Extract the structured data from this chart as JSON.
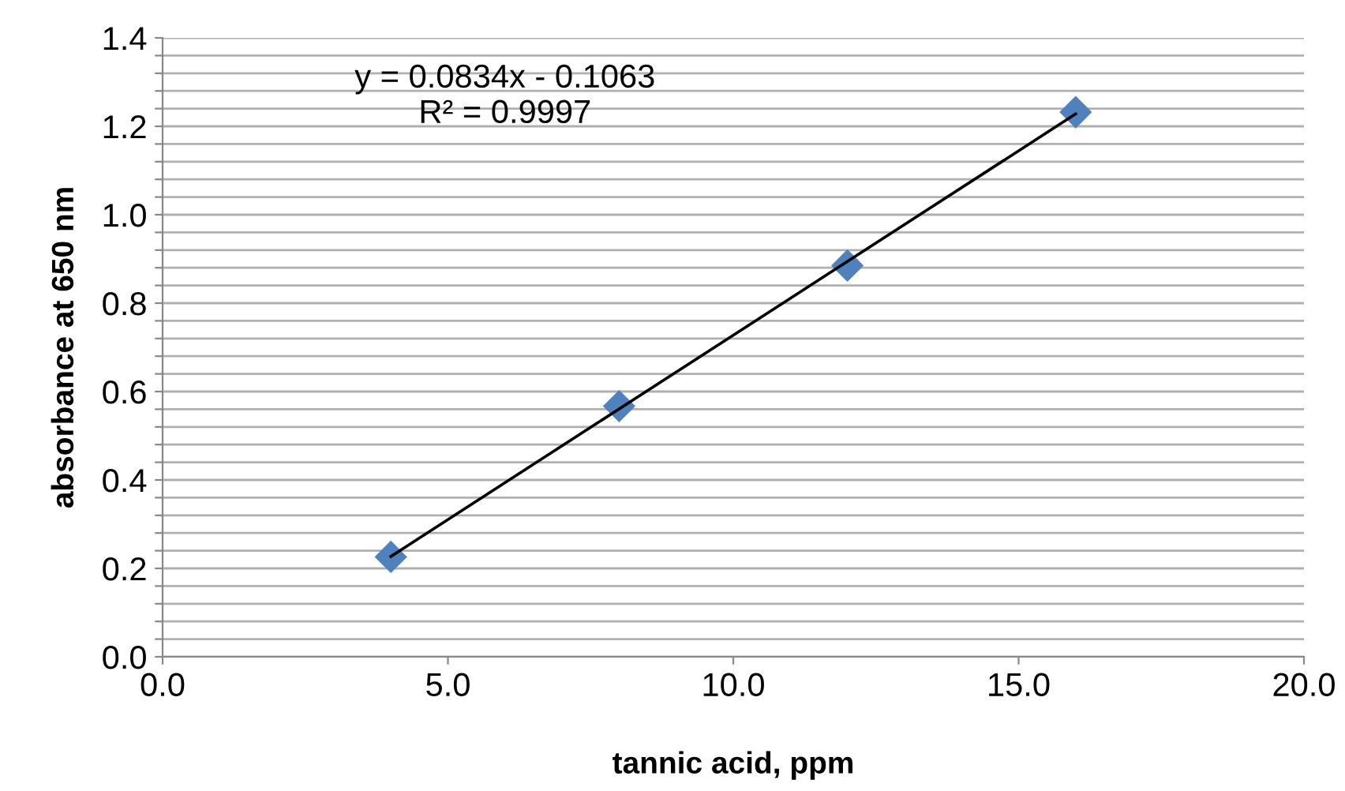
{
  "chart_data": {
    "type": "scatter",
    "xlabel": "tannic acid, ppm",
    "ylabel": "absorbance at 650 nm",
    "xlim": [
      0,
      20
    ],
    "xticks": [
      {
        "value": 0,
        "label": "0.0"
      },
      {
        "value": 5,
        "label": "5.0"
      },
      {
        "value": 10,
        "label": "10.0"
      },
      {
        "value": 15,
        "label": "15.0"
      },
      {
        "value": 20,
        "label": "20.0"
      }
    ],
    "ylim": [
      0,
      1.4
    ],
    "yticks": [
      {
        "value": 0,
        "label": "0.0"
      },
      {
        "value": 0.04,
        "label": null
      },
      {
        "value": 0.08,
        "label": null
      },
      {
        "value": 0.12,
        "label": null
      },
      {
        "value": 0.16,
        "label": null
      },
      {
        "value": 0.2,
        "label": "0.2"
      },
      {
        "value": 0.24,
        "label": null
      },
      {
        "value": 0.28,
        "label": null
      },
      {
        "value": 0.32,
        "label": null
      },
      {
        "value": 0.36,
        "label": null
      },
      {
        "value": 0.4,
        "label": "0.4"
      },
      {
        "value": 0.44,
        "label": null
      },
      {
        "value": 0.48,
        "label": null
      },
      {
        "value": 0.52,
        "label": null
      },
      {
        "value": 0.56,
        "label": null
      },
      {
        "value": 0.6,
        "label": "0.6"
      },
      {
        "value": 0.64,
        "label": null
      },
      {
        "value": 0.68,
        "label": null
      },
      {
        "value": 0.72,
        "label": null
      },
      {
        "value": 0.76,
        "label": null
      },
      {
        "value": 0.8,
        "label": "0.8"
      },
      {
        "value": 0.84,
        "label": null
      },
      {
        "value": 0.88,
        "label": null
      },
      {
        "value": 0.92,
        "label": null
      },
      {
        "value": 0.96,
        "label": null
      },
      {
        "value": 1.0,
        "label": "1.0"
      },
      {
        "value": 1.04,
        "label": null
      },
      {
        "value": 1.08,
        "label": null
      },
      {
        "value": 1.12,
        "label": null
      },
      {
        "value": 1.16,
        "label": null
      },
      {
        "value": 1.2,
        "label": "1.2"
      },
      {
        "value": 1.24,
        "label": null
      },
      {
        "value": 1.28,
        "label": null
      },
      {
        "value": 1.32,
        "label": null
      },
      {
        "value": 1.36,
        "label": null
      },
      {
        "value": 1.4,
        "label": "1.4"
      }
    ],
    "grid": "y",
    "series": [
      {
        "marker": "diamond",
        "color": "#4f81bd",
        "x": [
          4,
          8,
          12,
          16
        ],
        "values": [
          0.226,
          0.567,
          0.885,
          1.232
        ]
      },
      {
        "type": "line",
        "color": "#000000",
        "x": [
          4,
          16
        ],
        "values": [
          0.227,
          1.228
        ]
      }
    ],
    "annotations": [
      "y = 0.0834x - 0.1063\nR² = 0.9997"
    ]
  }
}
